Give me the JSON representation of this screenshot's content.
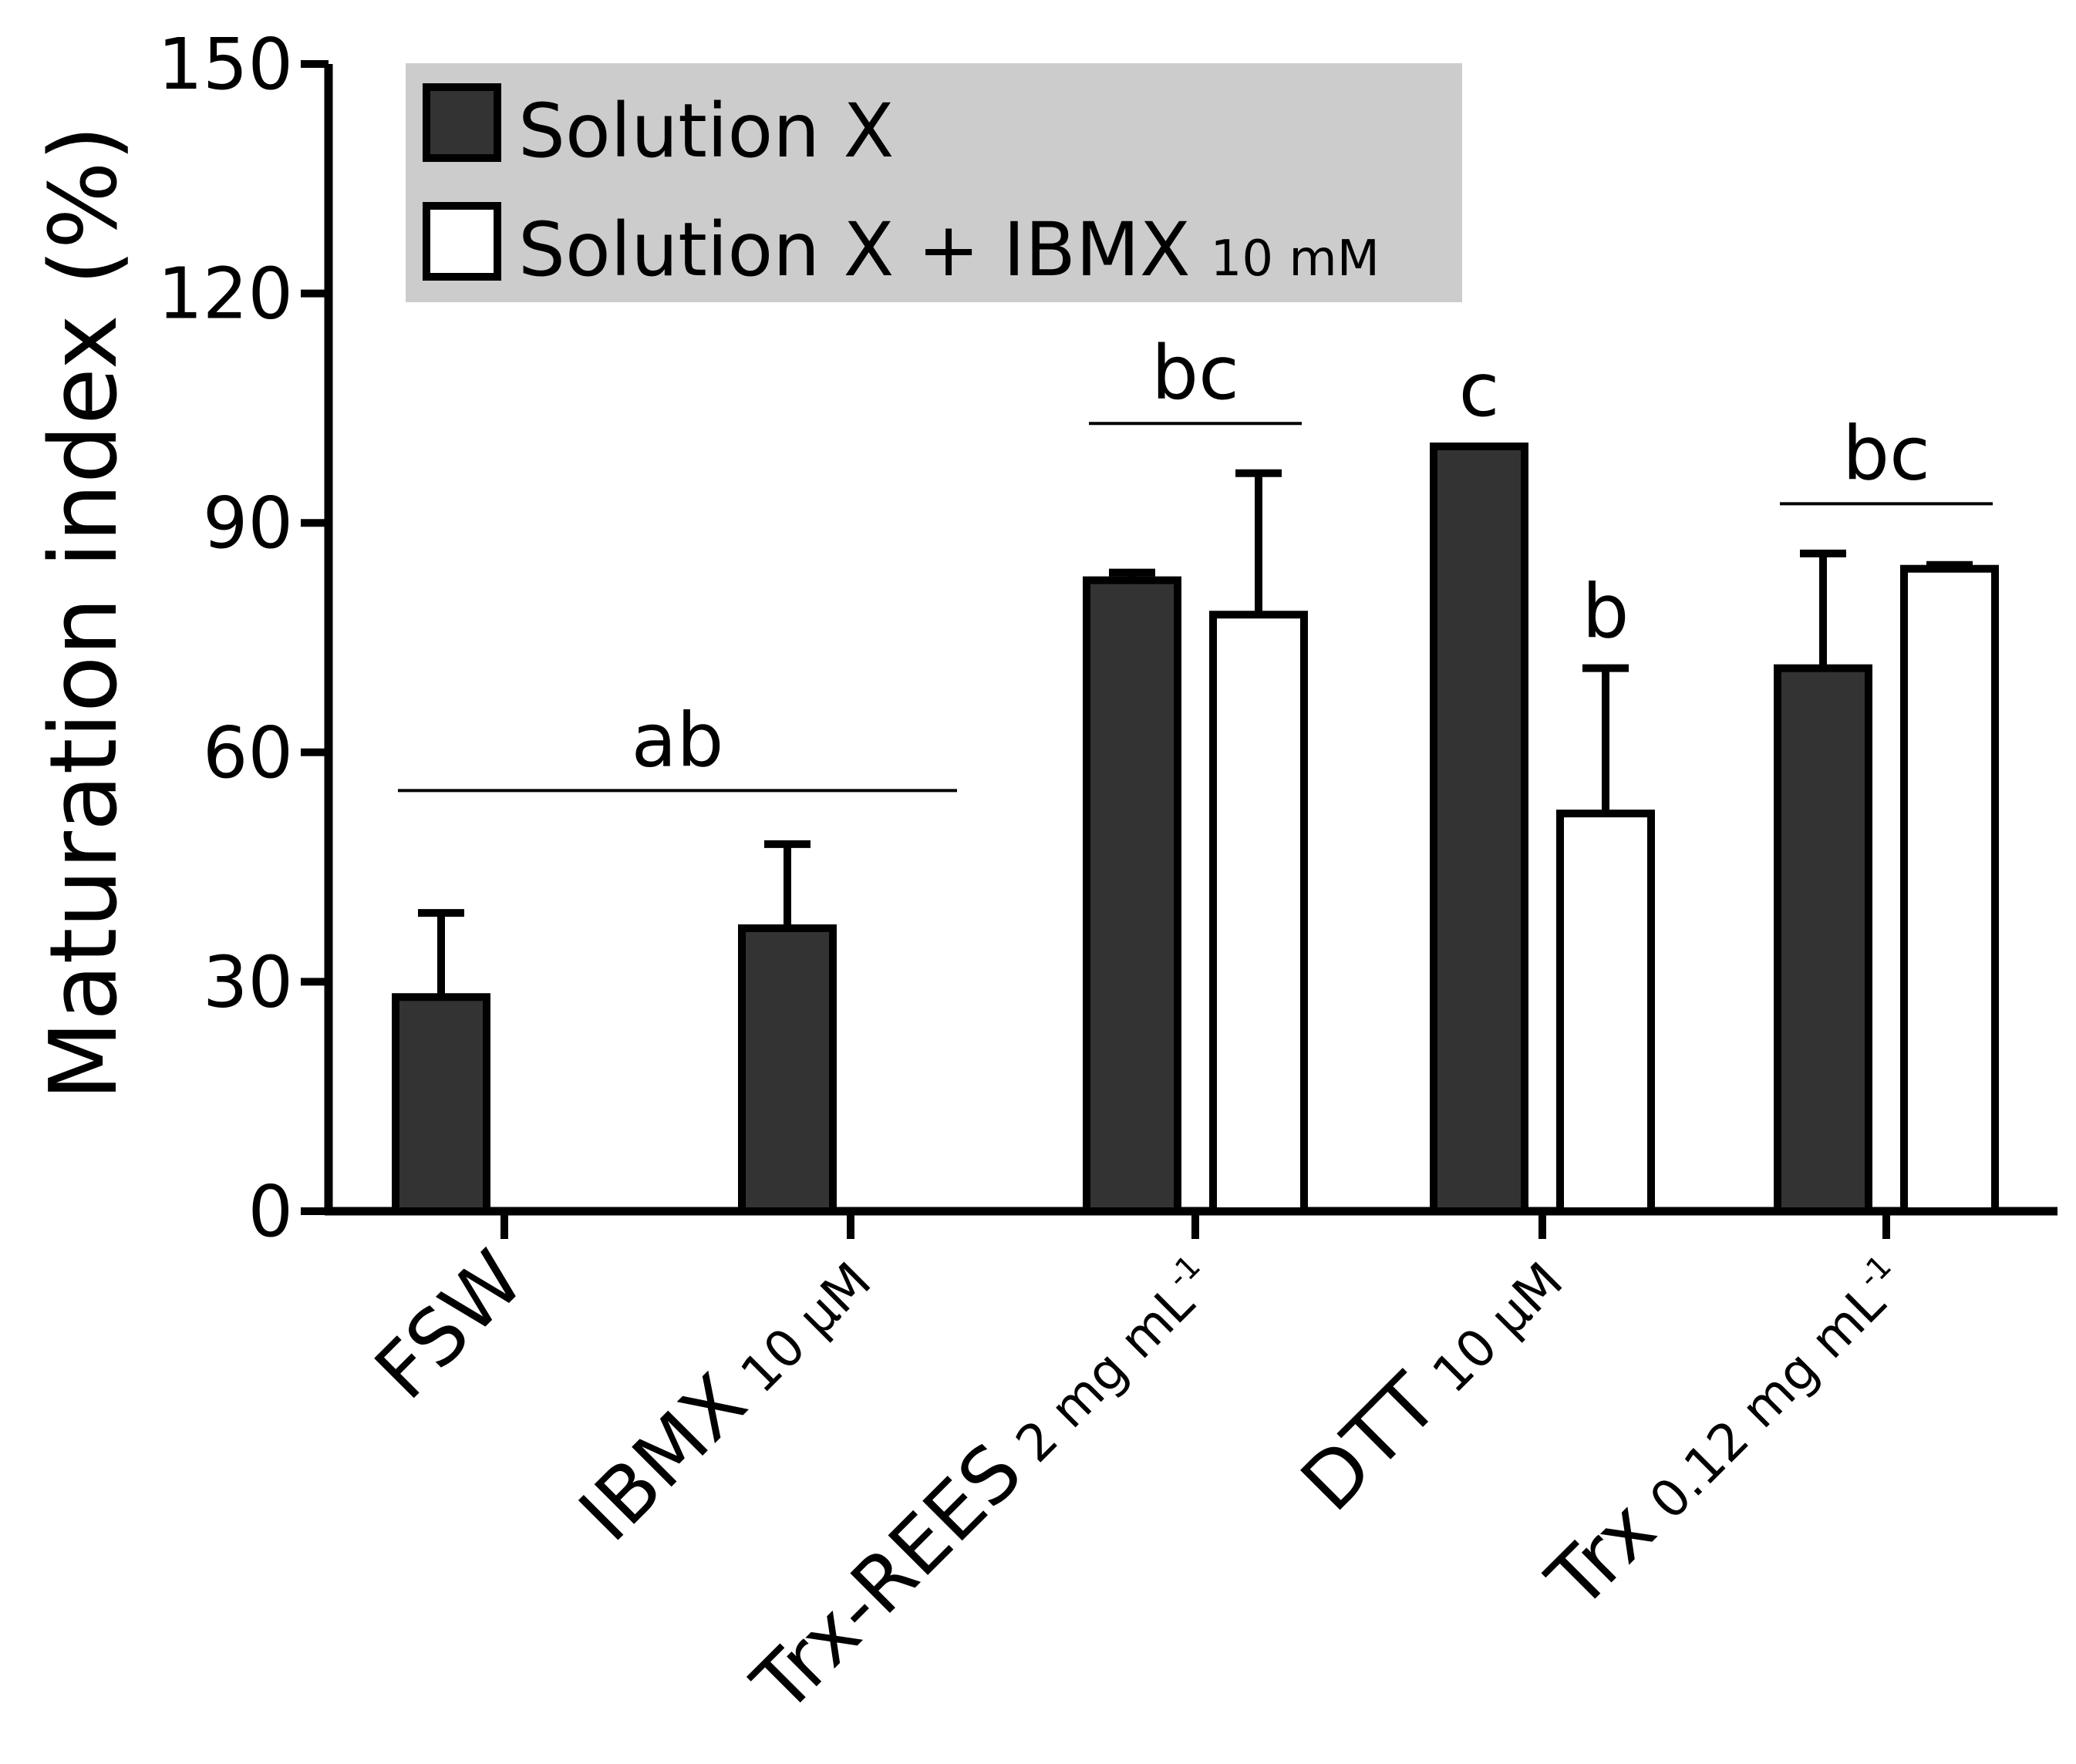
{
  "chart_data": {
    "type": "bar",
    "title": "",
    "xlabel": "",
    "ylabel": "Maturation index (%)",
    "ylim": [
      0,
      150
    ],
    "yticks": [
      0,
      30,
      60,
      90,
      120,
      150
    ],
    "colors": {
      "solution_x": "#333333",
      "solution_x_ibmx": "#ffffff",
      "stroke": "#000000",
      "legend_bg": "#cccccc"
    },
    "categories": [
      {
        "main": "FSW",
        "sub": ""
      },
      {
        "main": "IBMX",
        "sub": "10 µM"
      },
      {
        "main": "Trx-REES",
        "sub": "2 mg mL",
        "sup": "-1"
      },
      {
        "main": "DTT",
        "sub": "10 µM"
      },
      {
        "main": "Trx",
        "sub": "0.12 mg mL",
        "sup": "-1"
      }
    ],
    "series": [
      {
        "name": "Solution X",
        "values": [
          28,
          37,
          82.5,
          100,
          71
        ],
        "errors": [
          11,
          11,
          1,
          0,
          15
        ]
      },
      {
        "name": "Solution X + IBMX",
        "name_suffix": "10 mM",
        "values": [
          null,
          null,
          78,
          52,
          84
        ],
        "errors": [
          null,
          null,
          18.5,
          19,
          0.5
        ]
      }
    ],
    "significance": [
      {
        "label": "ab",
        "from_category": 0,
        "to_category": 1,
        "y": 55,
        "type": "bracket"
      },
      {
        "label": "bc",
        "from_category": 2,
        "to_category": 2,
        "y": 103,
        "type": "bracket"
      },
      {
        "label": "c",
        "category": 3,
        "series": 0,
        "y": 100,
        "type": "bar"
      },
      {
        "label": "b",
        "category": 3,
        "series": 1,
        "y": 71,
        "type": "bar"
      },
      {
        "label": "bc",
        "from_category": 4,
        "to_category": 4,
        "y": 92.5,
        "type": "bracket"
      }
    ]
  }
}
